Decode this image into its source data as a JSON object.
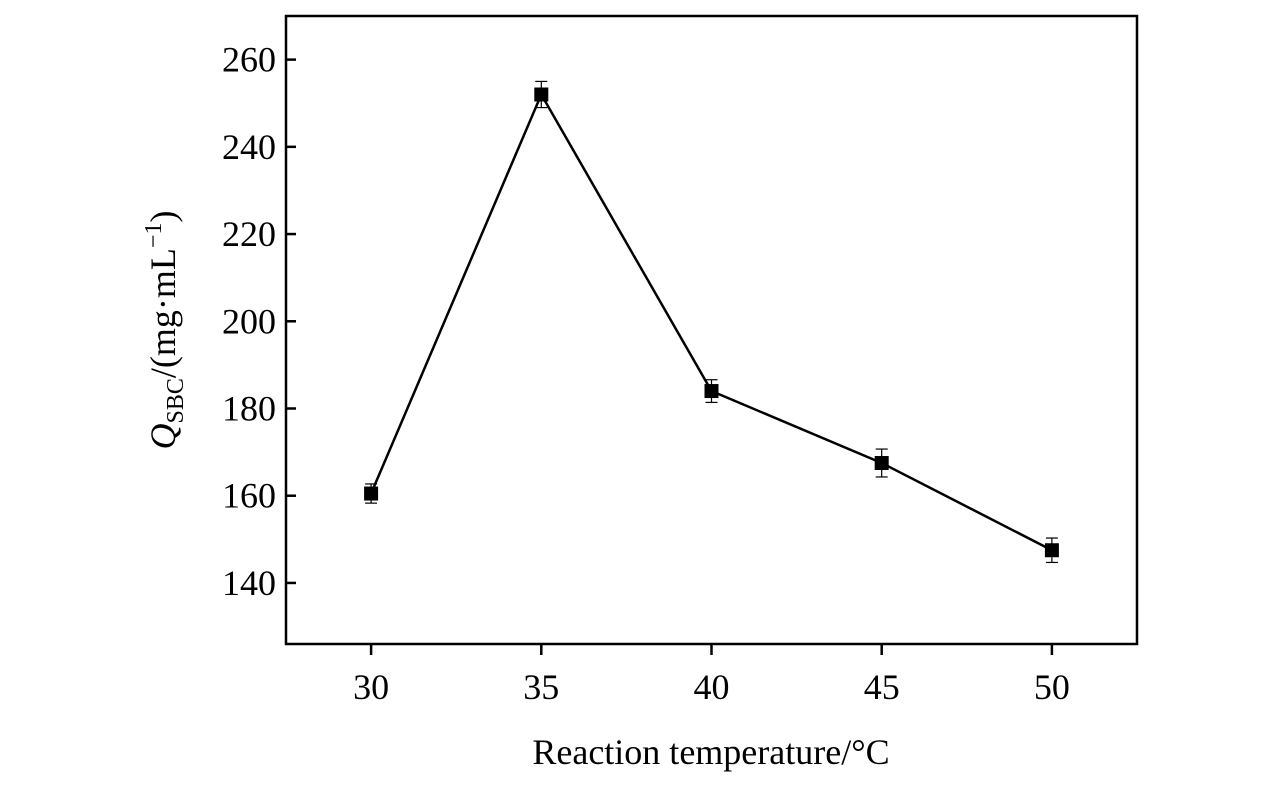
{
  "chart_data": {
    "type": "line",
    "title": "",
    "xlabel": "Reaction temperature/°C",
    "ylabel": {
      "symbol": "Q",
      "subscript": "SBC",
      "unit_prefix": "/(mg·mL",
      "unit_exponent": "−1",
      "unit_suffix": ")"
    },
    "x": [
      30,
      35,
      40,
      45,
      50
    ],
    "y": [
      160.5,
      252,
      184,
      167.5,
      147.5
    ],
    "error": [
      2.2,
      3.0,
      2.6,
      3.2,
      2.8
    ],
    "xlim": [
      27.5,
      52.5
    ],
    "ylim": [
      126,
      270
    ],
    "xticks": [
      "30",
      "35",
      "40",
      "45",
      "50"
    ],
    "yticks": [
      "140",
      "160",
      "180",
      "200",
      "220",
      "240",
      "260"
    ],
    "marker": "square",
    "color": "#000000",
    "grid": false,
    "legend": null
  }
}
